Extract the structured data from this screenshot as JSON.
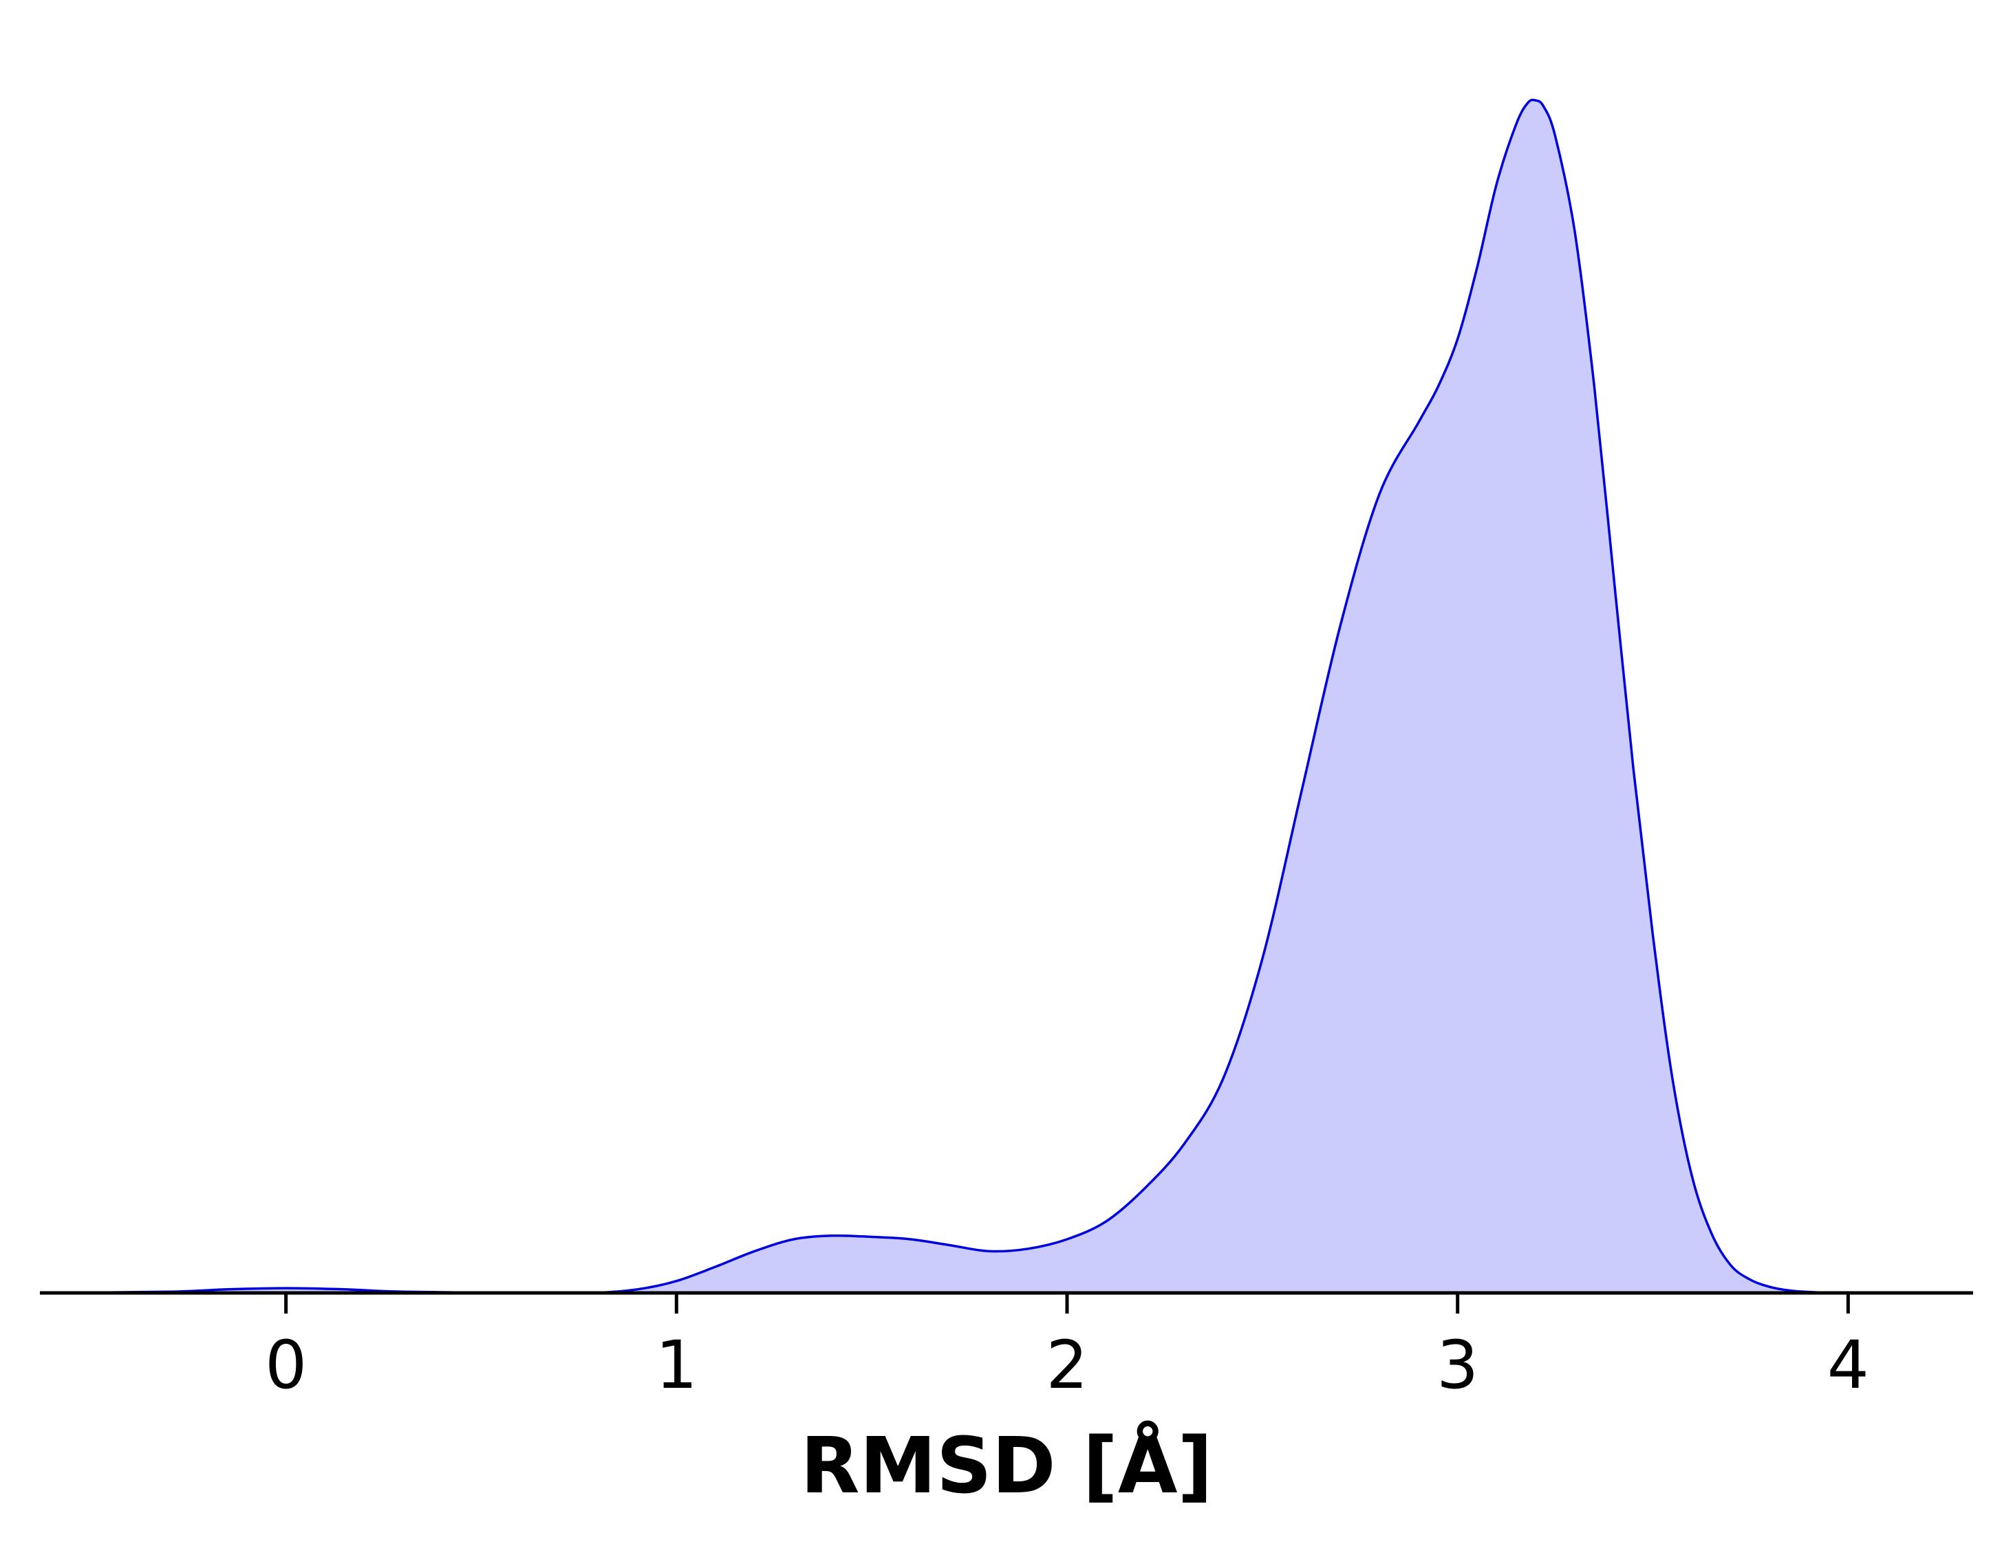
{
  "chart_data": {
    "type": "area",
    "title": "",
    "xlabel": "RMSD [Å]",
    "ylabel": "",
    "xlim": [
      -0.63,
      4.32
    ],
    "ylim": [
      0,
      1.0
    ],
    "xticks": [
      0,
      1,
      2,
      3,
      4
    ],
    "xtick_labels": [
      "0",
      "1",
      "2",
      "3",
      "4"
    ],
    "y_axis_visible": false,
    "grid": false,
    "legend": "none",
    "colors": {
      "line": "#0000dd",
      "fill": "#ccccfc",
      "axis": "#000000"
    },
    "series": [
      {
        "x": [
          -0.63,
          -0.3,
          -0.15,
          0.0,
          0.15,
          0.3,
          0.6,
          0.78,
          0.9,
          1.0,
          1.1,
          1.2,
          1.3,
          1.4,
          1.5,
          1.6,
          1.7,
          1.8,
          1.9,
          2.0,
          2.1,
          2.2,
          2.3,
          2.4,
          2.5,
          2.6,
          2.7,
          2.8,
          2.9,
          2.95,
          3.0,
          3.05,
          3.1,
          3.15,
          3.18,
          3.2,
          3.22,
          3.25,
          3.3,
          3.35,
          3.4,
          3.45,
          3.5,
          3.55,
          3.6,
          3.65,
          3.7,
          3.75,
          3.8,
          3.85,
          3.9,
          4.0,
          4.32
        ],
        "y": [
          0.0,
          0.001,
          0.003,
          0.004,
          0.003,
          0.001,
          0.0,
          0.0,
          0.003,
          0.01,
          0.022,
          0.035,
          0.045,
          0.048,
          0.047,
          0.045,
          0.04,
          0.035,
          0.037,
          0.045,
          0.06,
          0.088,
          0.125,
          0.18,
          0.28,
          0.42,
          0.56,
          0.67,
          0.73,
          0.76,
          0.8,
          0.86,
          0.93,
          0.98,
          0.998,
          1.0,
          0.995,
          0.97,
          0.89,
          0.76,
          0.6,
          0.44,
          0.3,
          0.18,
          0.098,
          0.05,
          0.023,
          0.011,
          0.005,
          0.002,
          0.0008,
          0.0,
          0.0
        ]
      }
    ]
  }
}
